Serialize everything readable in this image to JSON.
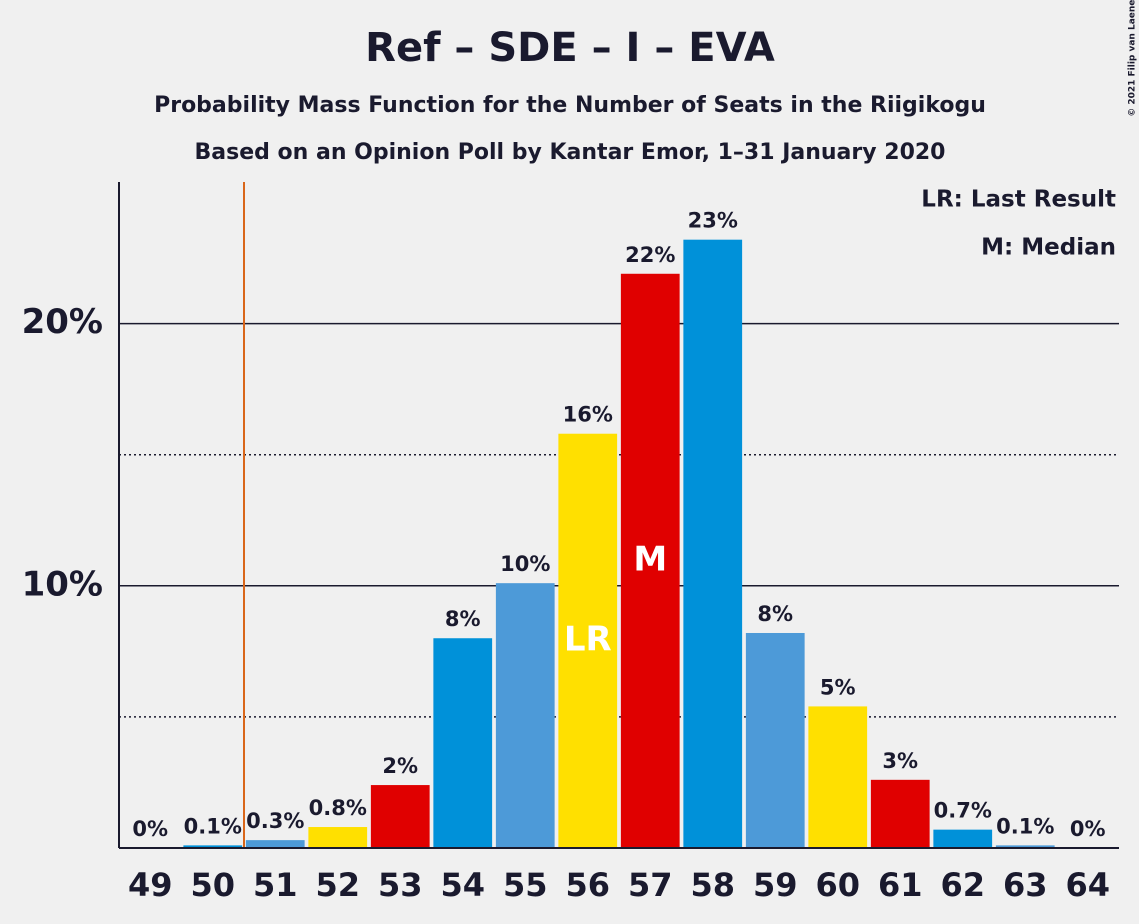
{
  "chart_data": {
    "type": "bar",
    "title": "Ref – SDE – I – EVA",
    "subtitle": "Probability Mass Function for the Number of Seats in the Riigikogu",
    "subtitle2": "Based on an Opinion Poll by Kantar Emor, 1–31 January 2020",
    "copyright": "© 2021 Filip van Laenen",
    "legend": [
      "LR: Last Result",
      "M: Median"
    ],
    "categories": [
      "49",
      "50",
      "51",
      "52",
      "53",
      "54",
      "55",
      "56",
      "57",
      "58",
      "59",
      "60",
      "61",
      "62",
      "63",
      "64"
    ],
    "values": [
      0,
      0.1,
      0.3,
      0.8,
      2.4,
      8.0,
      10.1,
      15.8,
      21.9,
      23.2,
      8.2,
      5.4,
      2.6,
      0.7,
      0.1,
      0
    ],
    "value_labels": [
      "0%",
      "0.1%",
      "0.3%",
      "0.8%",
      "2%",
      "8%",
      "10%",
      "16%",
      "22%",
      "23%",
      "8%",
      "5%",
      "3%",
      "0.7%",
      "0.1%",
      "0%"
    ],
    "colors": [
      "#e00000",
      "#0091d9",
      "#4d9ad8",
      "#ffe000",
      "#e00000",
      "#0091d9",
      "#4d9ad8",
      "#ffe000",
      "#e00000",
      "#0091d9",
      "#4d9ad8",
      "#ffe000",
      "#e00000",
      "#0091d9",
      "#4d9ad8",
      "#ffe000"
    ],
    "bar_annotations": [
      null,
      null,
      null,
      null,
      null,
      null,
      null,
      "LR",
      "M",
      null,
      null,
      null,
      null,
      null,
      null,
      null
    ],
    "threshold_line": 50.5,
    "threshold_color": "#d9661a",
    "ylim": [
      0,
      25.4
    ],
    "yticks": [
      {
        "value": 10,
        "label": "10%"
      },
      {
        "value": 20,
        "label": "20%"
      }
    ],
    "minor_yticks": [
      5,
      15
    ],
    "grid": true
  }
}
